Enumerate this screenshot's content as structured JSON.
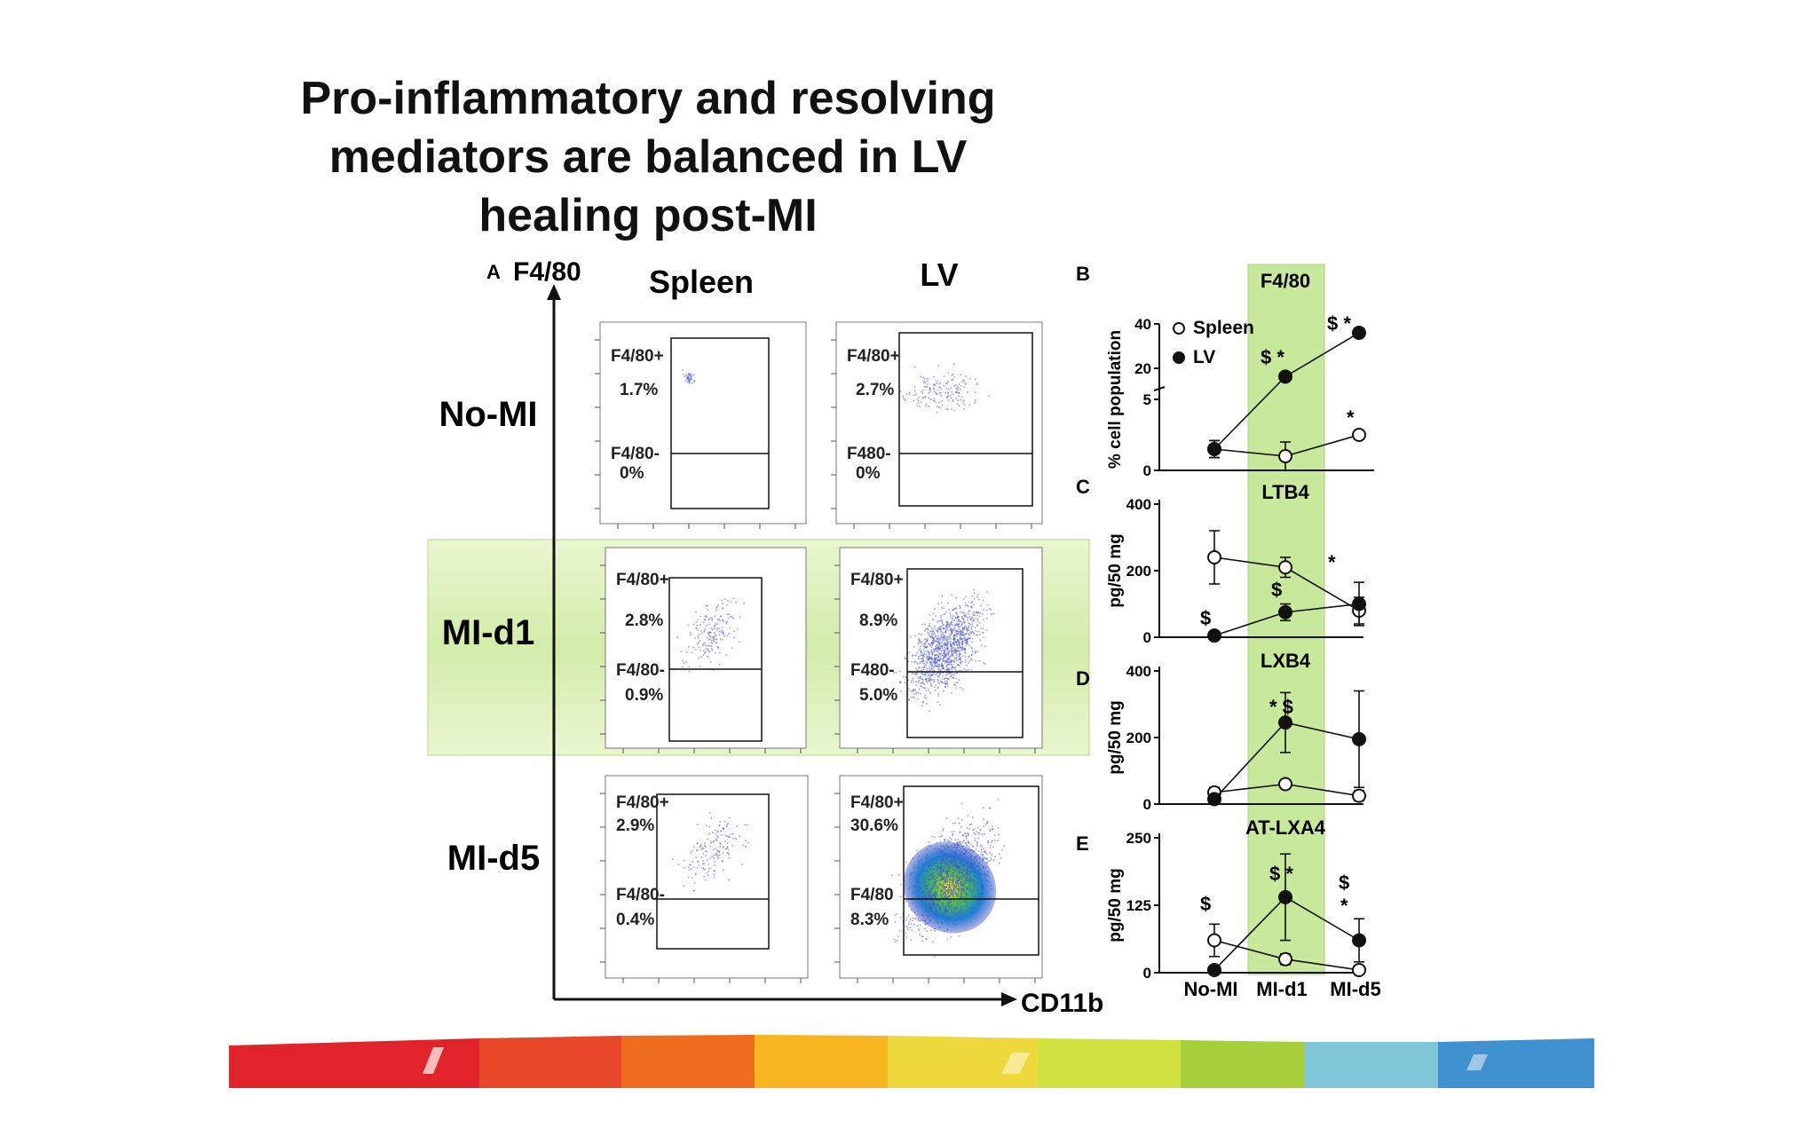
{
  "slide": {
    "title_lines": [
      "Pro-inflammatory and resolving",
      "mediators are balanced in LV",
      "healing post-MI"
    ]
  },
  "panel_a": {
    "letter": "A",
    "y_axis_label": "F4/80",
    "x_axis_label": "CD11b",
    "column_headers": [
      "Spleen",
      "LV"
    ],
    "row_labels": [
      "No-MI",
      "MI-d1",
      "MI-d5"
    ],
    "highlighted_row": "MI-d1",
    "plots": [
      {
        "row": "No-MI",
        "col": "Spleen",
        "upper_gate": "F4/80+",
        "upper_pct": "1.7%",
        "lower_gate": "F4/80-",
        "lower_pct": "0%"
      },
      {
        "row": "No-MI",
        "col": "LV",
        "upper_gate": "F4/80+",
        "upper_pct": "2.7%",
        "lower_gate": "F480-",
        "lower_pct": "0%"
      },
      {
        "row": "MI-d1",
        "col": "Spleen",
        "upper_gate": "F4/80+",
        "upper_pct": "2.8%",
        "lower_gate": "F4/80-",
        "lower_pct": "0.9%"
      },
      {
        "row": "MI-d1",
        "col": "LV",
        "upper_gate": "F4/80+",
        "upper_pct": "8.9%",
        "lower_gate": "F480-",
        "lower_pct": "5.0%"
      },
      {
        "row": "MI-d5",
        "col": "Spleen",
        "upper_gate": "F4/80+",
        "upper_pct": "2.9%",
        "lower_gate": "F4/80-",
        "lower_pct": "0.4%"
      },
      {
        "row": "MI-d5",
        "col": "LV",
        "upper_gate": "F4/80+",
        "upper_pct": "30.6%",
        "lower_gate": "F4/80",
        "lower_pct": "8.3%"
      }
    ]
  },
  "chart_data": [
    {
      "panel": "B",
      "type": "line",
      "title": "F4/80",
      "ylabel": "% cell population",
      "categories": [
        "No-MI",
        "MI-d1",
        "MI-d5"
      ],
      "broken_y_axis": true,
      "y_ticks": [
        "0",
        "5",
        "20",
        "40"
      ],
      "ylim": [
        0,
        40
      ],
      "legend": [
        "Spleen",
        "LV"
      ],
      "legend_position": "top-left",
      "series": [
        {
          "name": "Spleen",
          "marker": "open-circle",
          "values": [
            1.5,
            1.0,
            2.5
          ],
          "errors": [
            0.6,
            1.0,
            0.3
          ]
        },
        {
          "name": "LV",
          "marker": "filled-circle",
          "values": [
            1.5,
            16,
            36
          ],
          "errors": [
            0.6,
            2,
            2
          ]
        }
      ],
      "annotations": [
        {
          "category": "MI-d1",
          "text": "$ *"
        },
        {
          "category": "MI-d5",
          "text": "$ *"
        },
        {
          "category": "MI-d5",
          "text": "*"
        }
      ]
    },
    {
      "panel": "C",
      "type": "line",
      "title": "LTB4",
      "ylabel": "pg/50 mg",
      "categories": [
        "No-MI",
        "MI-d1",
        "MI-d5"
      ],
      "ylim": [
        0,
        400
      ],
      "y_ticks": [
        "0",
        "200",
        "400"
      ],
      "series": [
        {
          "name": "Spleen",
          "marker": "open-circle",
          "values": [
            240,
            210,
            80
          ],
          "errors": [
            80,
            30,
            40
          ]
        },
        {
          "name": "LV",
          "marker": "filled-circle",
          "values": [
            5,
            75,
            100
          ],
          "errors": [
            5,
            25,
            65
          ]
        }
      ],
      "annotations": [
        {
          "category": "No-MI",
          "text": "$"
        },
        {
          "category": "MI-d1",
          "text": "$"
        },
        {
          "category": "MI-d5",
          "text": "*"
        }
      ]
    },
    {
      "panel": "D",
      "type": "line",
      "title": "LXB4",
      "ylabel": "pg/50 mg",
      "categories": [
        "No-MI",
        "MI-d1",
        "MI-d5"
      ],
      "ylim": [
        0,
        400
      ],
      "y_ticks": [
        "0",
        "200",
        "400"
      ],
      "series": [
        {
          "name": "Spleen",
          "marker": "open-circle",
          "values": [
            35,
            60,
            25
          ],
          "errors": [
            15,
            10,
            15
          ]
        },
        {
          "name": "LV",
          "marker": "filled-circle",
          "values": [
            15,
            245,
            195
          ],
          "errors": [
            5,
            90,
            145
          ]
        }
      ],
      "annotations": [
        {
          "category": "MI-d1",
          "text": "* $"
        }
      ]
    },
    {
      "panel": "E",
      "type": "line",
      "title": "AT-LXA4",
      "ylabel": "pg/50 mg",
      "categories": [
        "No-MI",
        "MI-d1",
        "MI-d5"
      ],
      "ylim": [
        0,
        250
      ],
      "y_ticks": [
        "0",
        "125",
        "250"
      ],
      "series": [
        {
          "name": "Spleen",
          "marker": "open-circle",
          "values": [
            60,
            25,
            5
          ],
          "errors": [
            30,
            10,
            5
          ]
        },
        {
          "name": "LV",
          "marker": "filled-circle",
          "values": [
            5,
            140,
            60
          ],
          "errors": [
            3,
            80,
            40
          ]
        }
      ],
      "annotations": [
        {
          "category": "No-MI",
          "text": "$"
        },
        {
          "category": "MI-d1",
          "text": "$ *"
        },
        {
          "category": "MI-d5",
          "text": "$"
        },
        {
          "category": "MI-d5",
          "text": "*"
        }
      ],
      "x_tick_labels": [
        "No-MI",
        "MI-d1",
        "MI-d5"
      ]
    }
  ],
  "colors": {
    "highlight_band": "#cfe9a0",
    "dot_blue": "#4a55c8",
    "footer_stripes": [
      "#e0242a",
      "#ee6a1c",
      "#f7b520",
      "#e9e14a",
      "#a6cf3a",
      "#56b7d8",
      "#2f7fc1"
    ]
  }
}
